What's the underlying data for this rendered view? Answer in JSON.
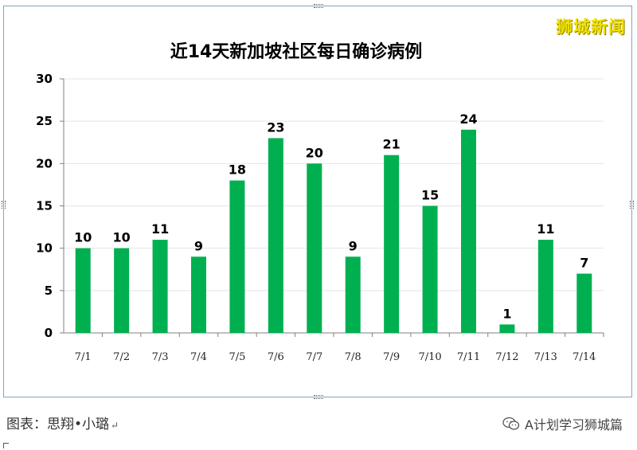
{
  "watermark": "狮城新闻",
  "caption": {
    "text": "图表：思翔•小璐",
    "mark": "↵"
  },
  "brand": {
    "icon": "wechat-icon",
    "text": "A计划学习狮城篇"
  },
  "colors": {
    "bar": "#00b050",
    "frame": "#7fa7b5",
    "watermark": "#f0e000"
  },
  "chart_data": {
    "type": "bar",
    "title": "近14天新加坡社区每日确诊病例",
    "categories": [
      "7/1",
      "7/2",
      "7/3",
      "7/4",
      "7/5",
      "7/6",
      "7/7",
      "7/8",
      "7/9",
      "7/10",
      "7/11",
      "7/12",
      "7/13",
      "7/14"
    ],
    "values": [
      10,
      10,
      11,
      9,
      18,
      23,
      20,
      9,
      21,
      15,
      24,
      1,
      11,
      7
    ],
    "ylim": [
      0,
      30
    ],
    "yticks": [
      0,
      5,
      10,
      15,
      20,
      25,
      30
    ],
    "grid": true,
    "data_labels": true,
    "legend": "none",
    "xlabel": "",
    "ylabel": ""
  }
}
